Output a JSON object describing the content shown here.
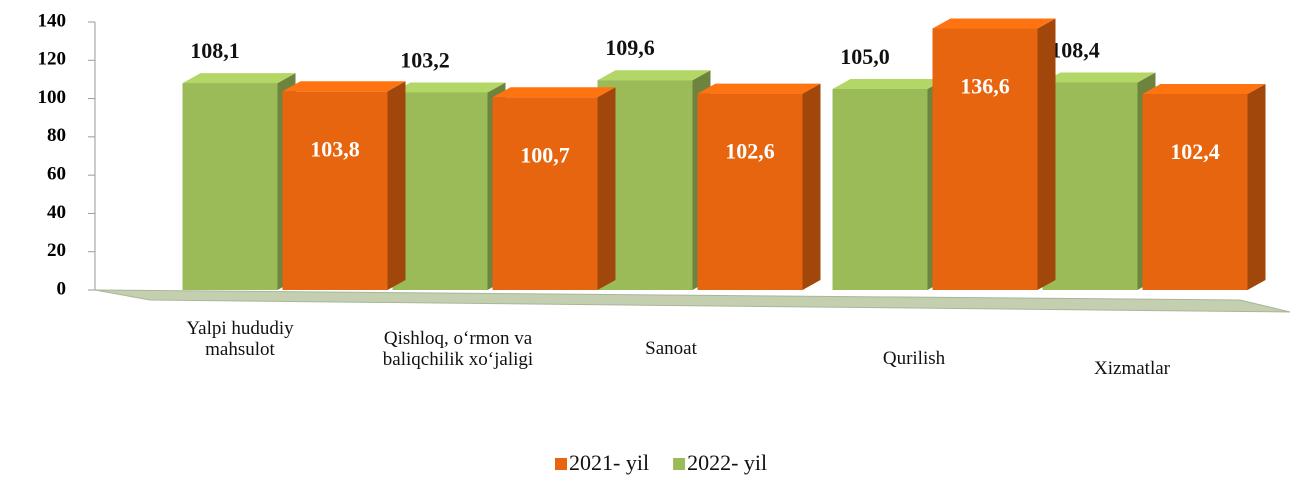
{
  "chart_data": {
    "type": "bar",
    "categories": [
      "Yalpi hududiy mahsulot",
      "Qishloq, o‘rmon va baliqchilik xo‘jaligi",
      "Sanoat",
      "Qurilish",
      "Xizmatlar"
    ],
    "series": [
      {
        "name": "2021- yil",
        "color": "#e8650f",
        "values": [
          103.8,
          100.7,
          102.6,
          136.6,
          102.4
        ],
        "value_labels": [
          "103,8",
          "100,7",
          "102,6",
          "136,6",
          "102,4"
        ]
      },
      {
        "name": "2022- yil",
        "color": "#9bbb59",
        "values": [
          108.1,
          103.2,
          109.6,
          105.0,
          108.4
        ],
        "value_labels": [
          "108,1",
          "103,2",
          "109,6",
          "105,0",
          "108,4"
        ]
      }
    ],
    "ylim": [
      0,
      140
    ],
    "yticks": [
      0,
      20,
      40,
      60,
      80,
      100,
      120,
      140
    ],
    "legend": "bottom"
  }
}
